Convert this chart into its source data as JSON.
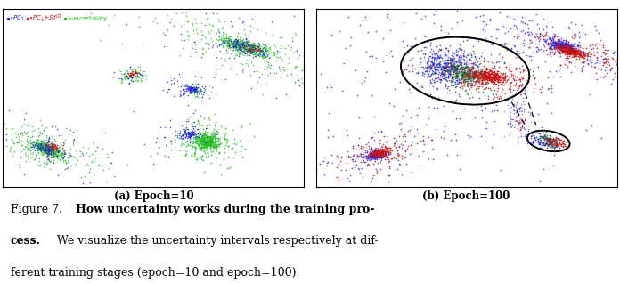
{
  "fig_width": 6.96,
  "fig_height": 3.18,
  "background_color": "#ffffff",
  "panel_a_label": "(a) Epoch=10",
  "panel_b_label": "(b) Epoch=100",
  "caption_line1_normal": "Figure 7.",
  "caption_line1_bold": "  How uncertainty works during the training pro-",
  "caption_line2_bold": "cess.",
  "caption_line2_normal": "  We visualize the uncertainty intervals respectively at dif-",
  "caption_line3": "ferent training stages (epoch=10 and epoch=100).",
  "seed": 12345
}
